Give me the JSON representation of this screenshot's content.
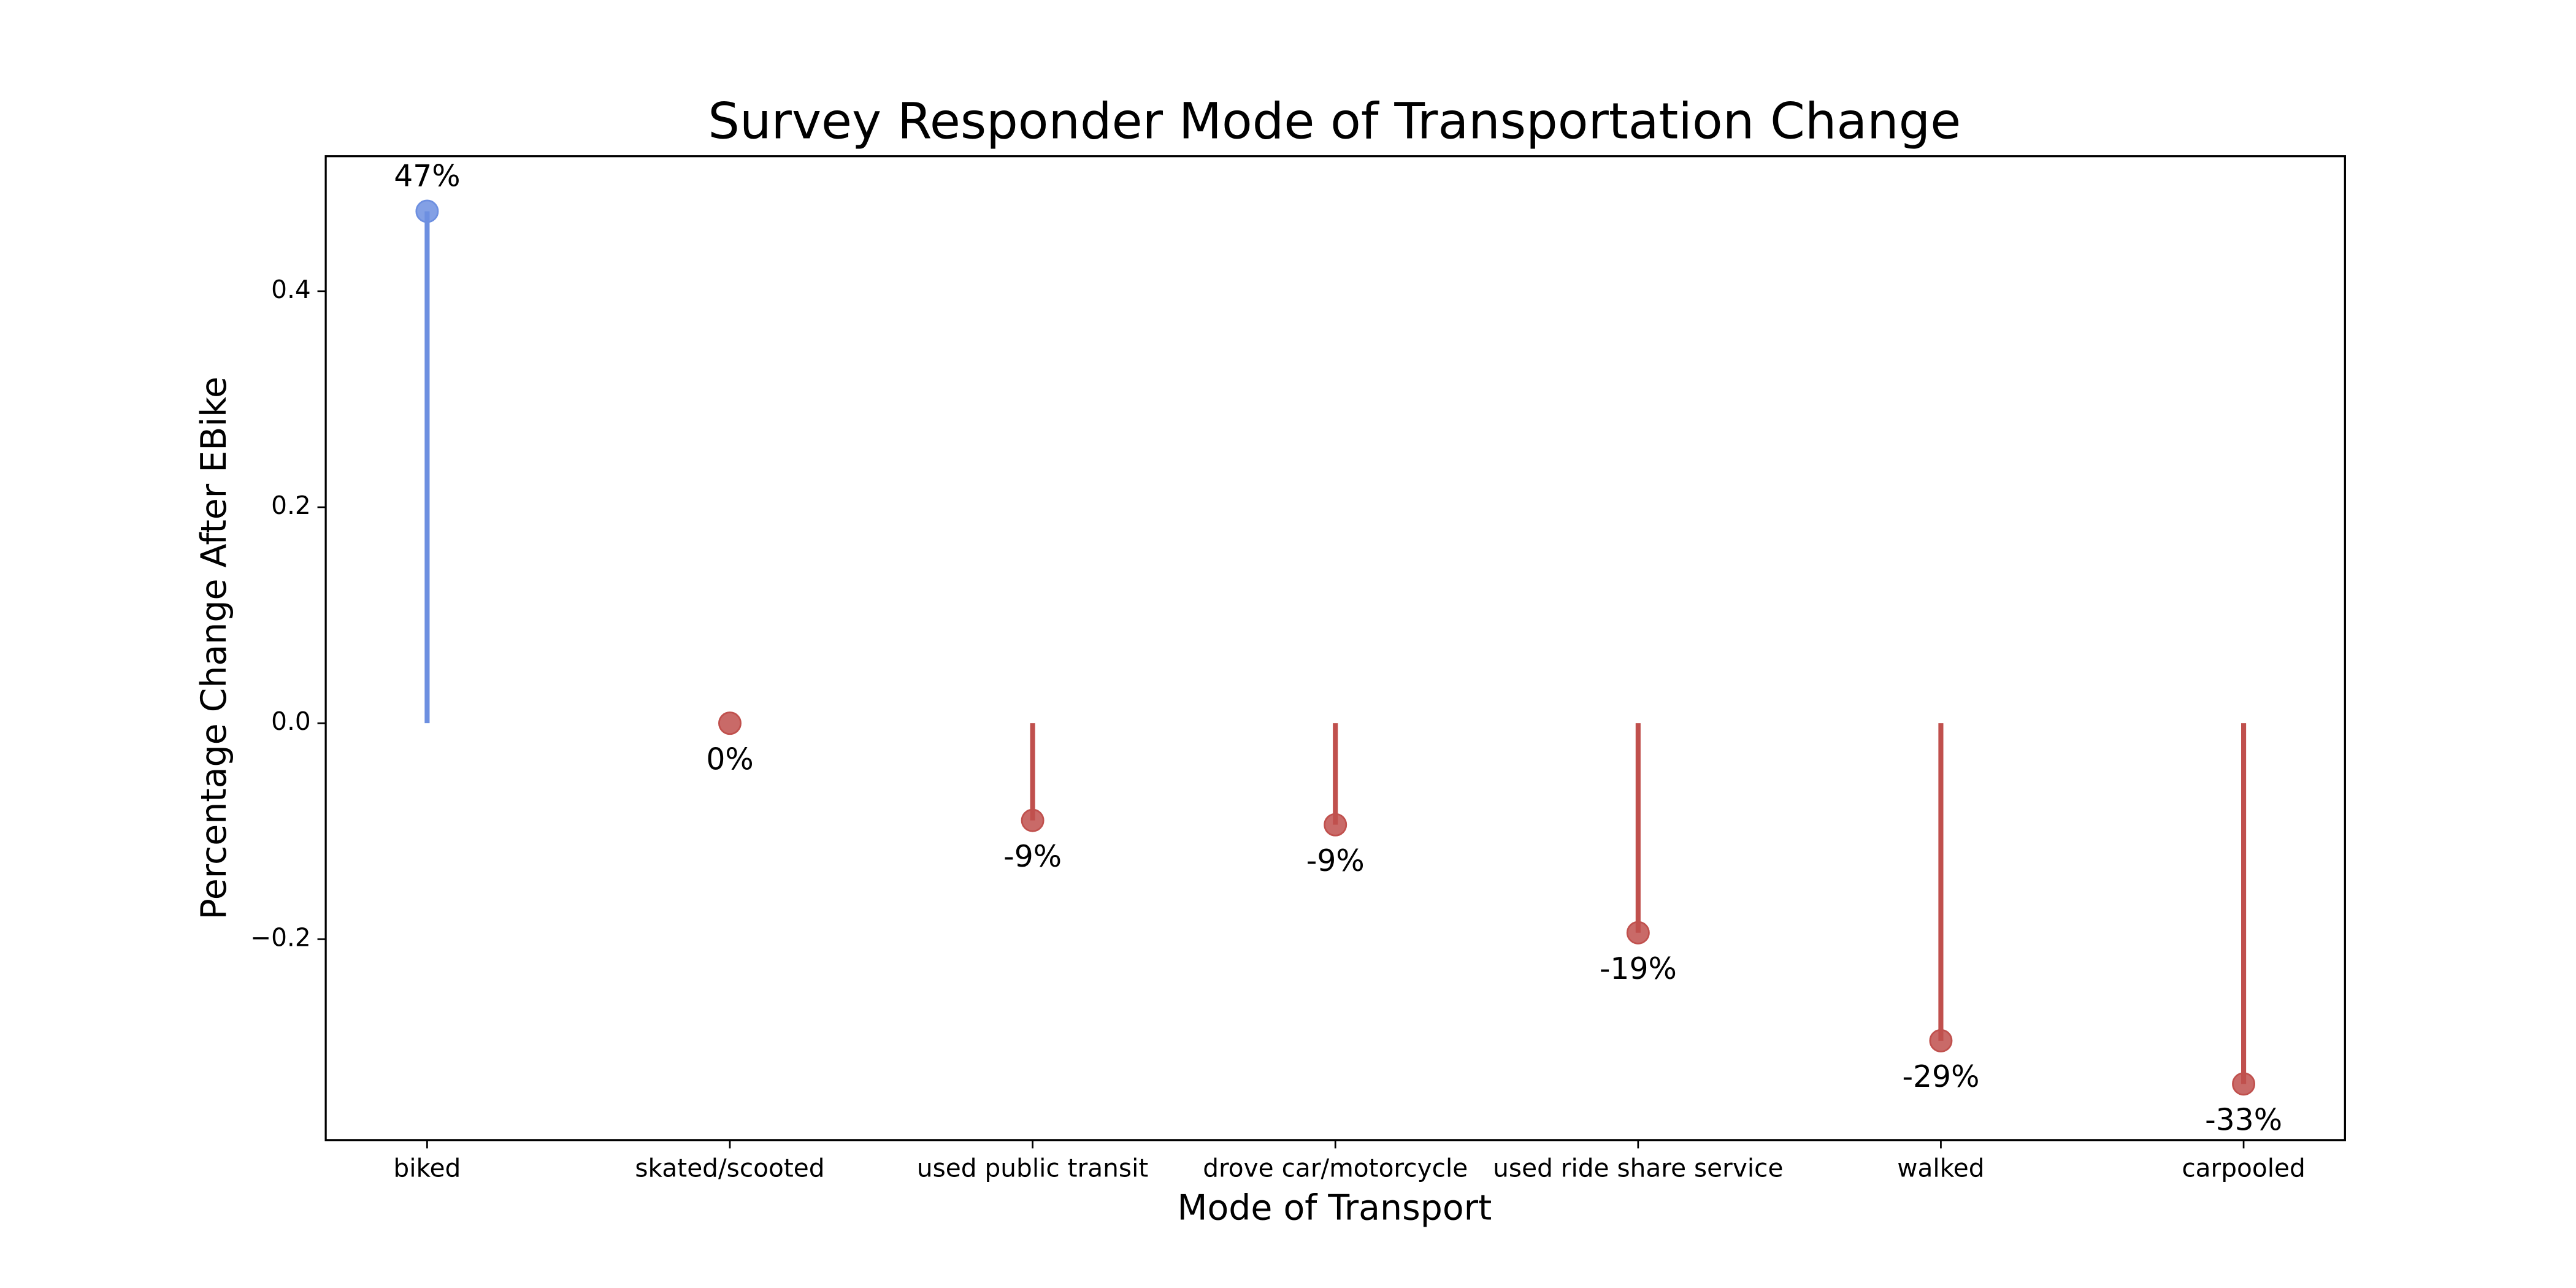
{
  "chart_data": {
    "type": "lollipop",
    "title": "Survey Responder Mode of Transportation Change",
    "x_label": "Mode of Transport",
    "y_label": "Percentage Change After EBike",
    "categories": [
      "biked",
      "skated/scooted",
      "used public transit",
      "drove car/motorcycle",
      "used ride share service",
      "walked",
      "carpooled"
    ],
    "values": [
      0.474,
      0.0,
      -0.09,
      -0.094,
      -0.194,
      -0.294,
      -0.334
    ],
    "value_labels": [
      "47%",
      "0%",
      "-9%",
      "-9%",
      "-19%",
      "-29%",
      "-33%"
    ],
    "positive_color": "#6d8fe0",
    "negative_color": "#c0504d",
    "ylim": [
      -0.386,
      0.525
    ],
    "yticks": [
      {
        "value": -0.2,
        "label": "−0.2"
      },
      {
        "value": 0,
        "label": "0.0"
      },
      0.2,
      0.4
    ]
  }
}
